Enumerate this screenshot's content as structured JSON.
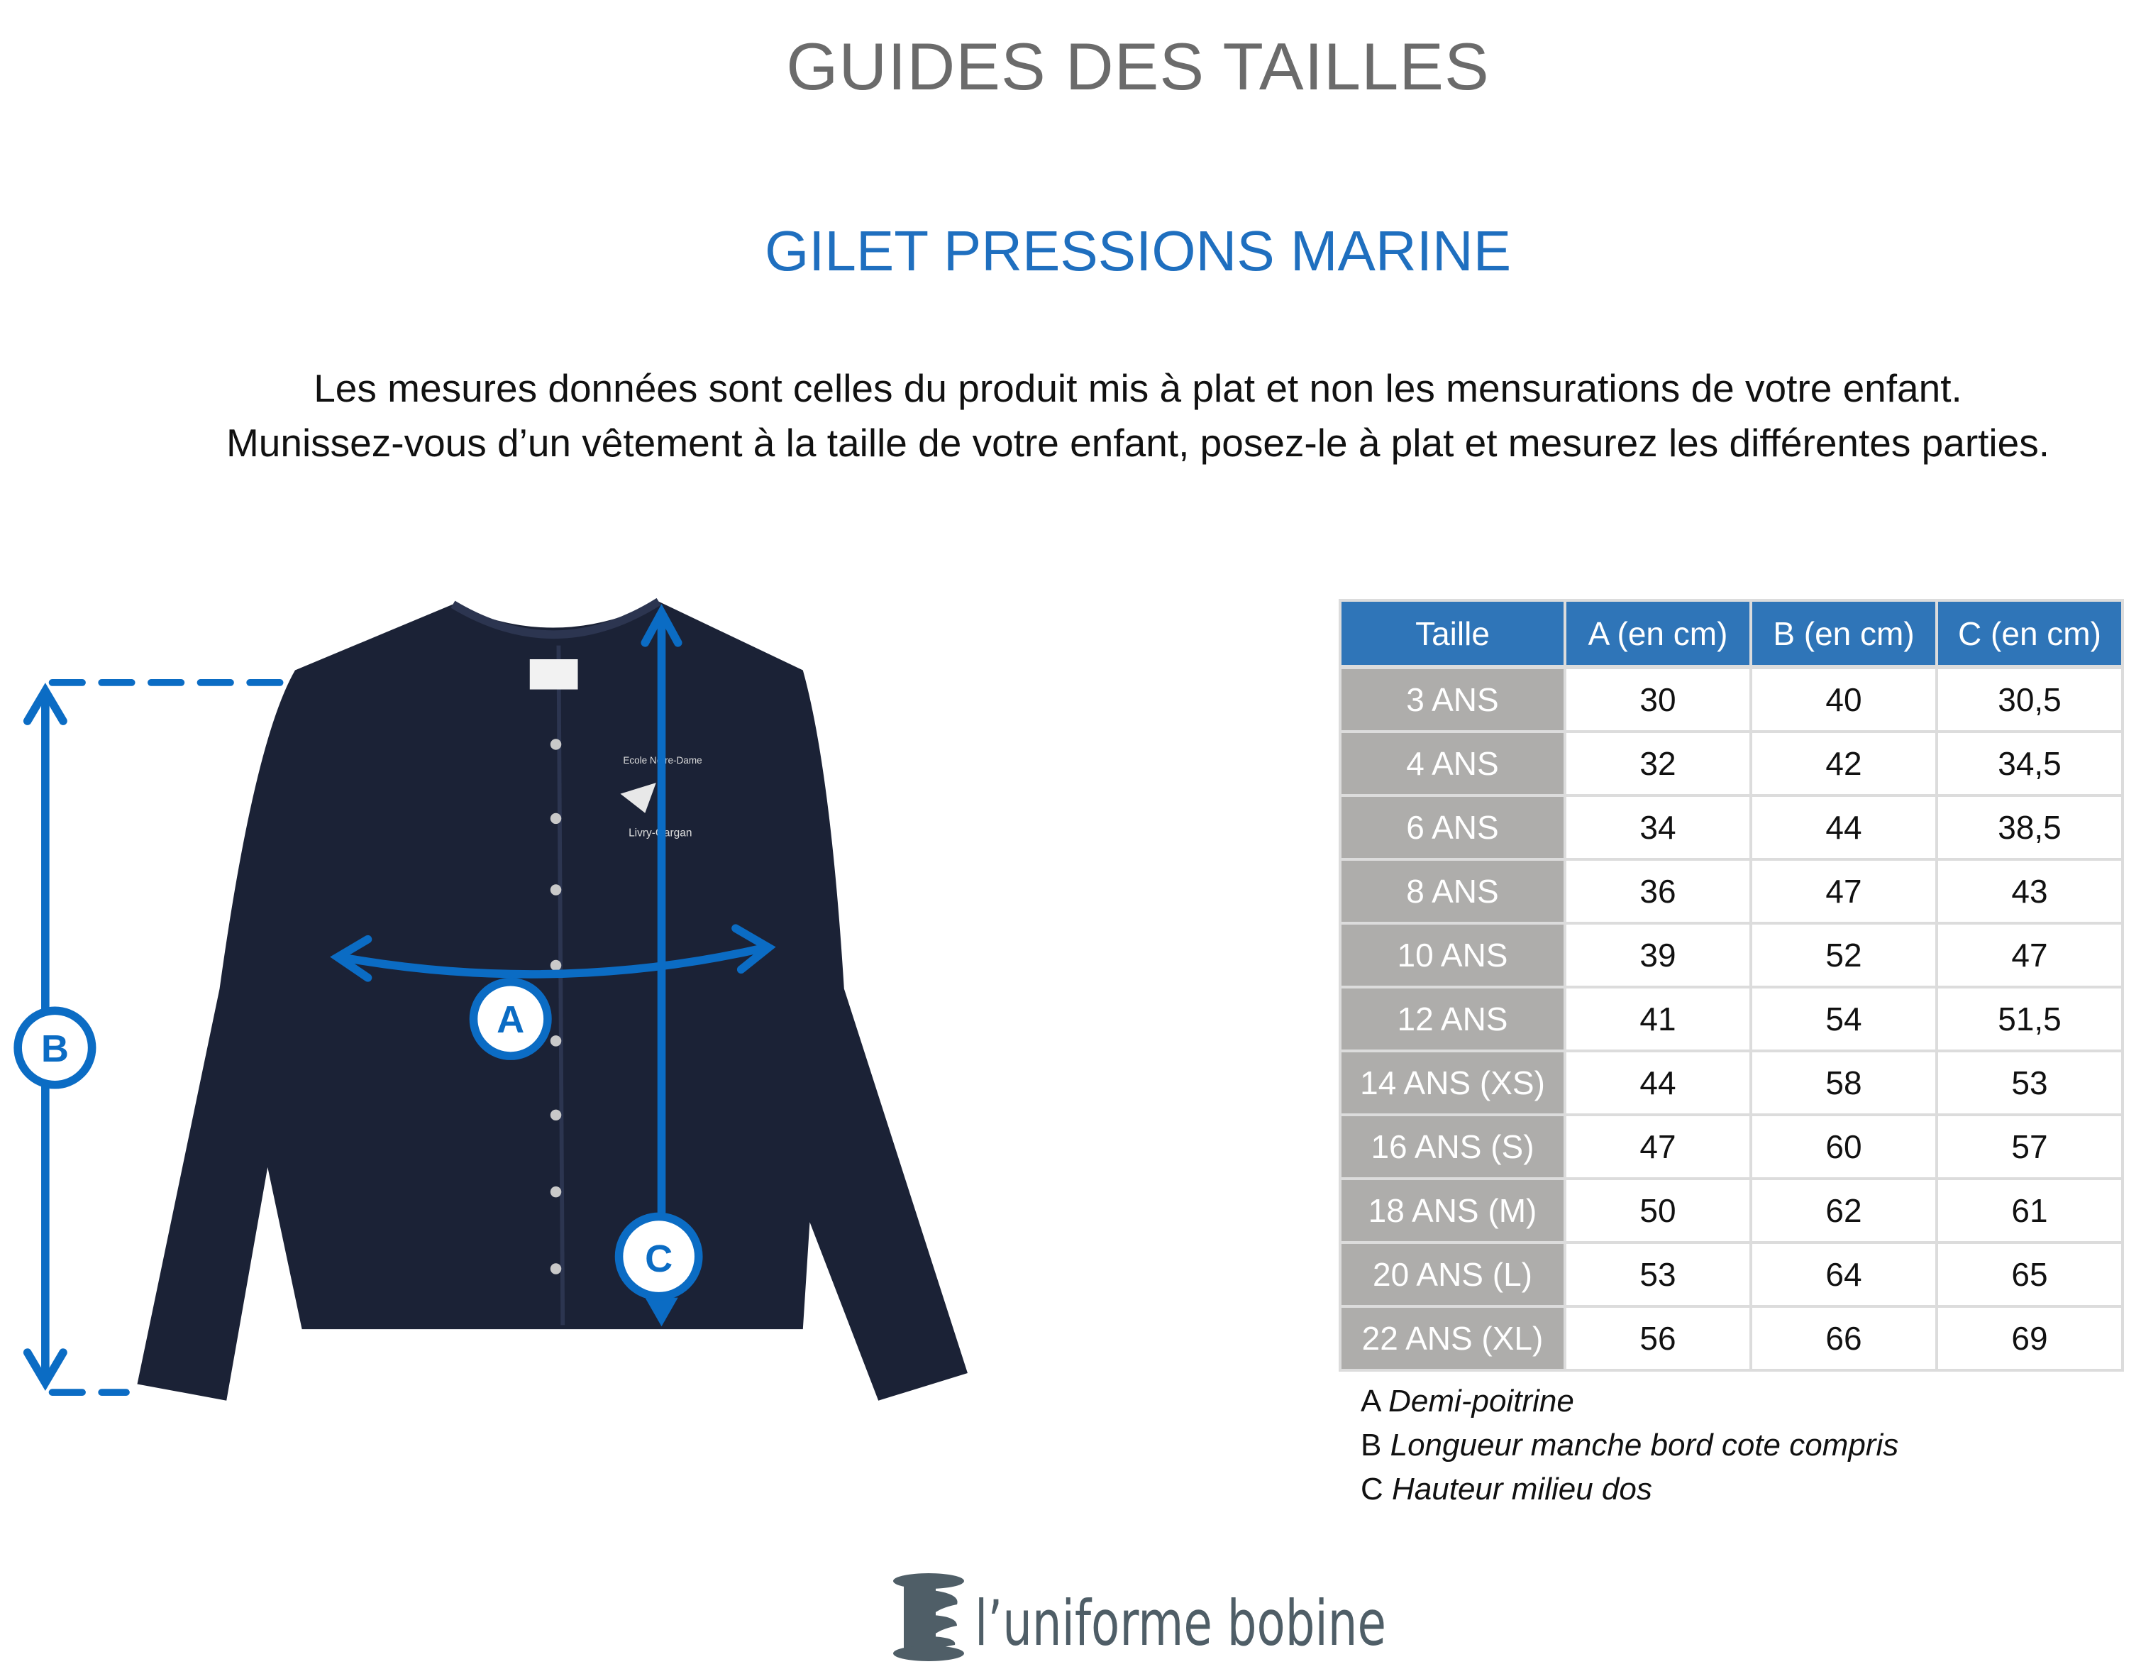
{
  "title": "GUIDES DES TAILLES",
  "subtitle": "GILET PRESSIONS MARINE",
  "intro": [
    "Les mesures données sont celles du produit mis à plat et non les mensurations de votre enfant.",
    "Munissez-vous d’un vêtement à la taille de votre enfant, posez-le à plat et mesurez les différentes parties."
  ],
  "figure": {
    "markers": [
      "A",
      "B",
      "C"
    ],
    "embroidery": [
      "Ecole Notre-Dame",
      "Livry-Gargan"
    ],
    "colors": {
      "arrow": "#0b6cc4",
      "garment": "#1b2236"
    }
  },
  "table": {
    "headers": [
      "Taille",
      "A (en cm)",
      "B (en cm)",
      "C (en cm)"
    ],
    "rows": [
      [
        "3 ANS",
        "30",
        "40",
        "30,5"
      ],
      [
        "4 ANS",
        "32",
        "42",
        "34,5"
      ],
      [
        "6 ANS",
        "34",
        "44",
        "38,5"
      ],
      [
        "8 ANS",
        "36",
        "47",
        "43"
      ],
      [
        "10 ANS",
        "39",
        "52",
        "47"
      ],
      [
        "12 ANS",
        "41",
        "54",
        "51,5"
      ],
      [
        "14 ANS (XS)",
        "44",
        "58",
        "53"
      ],
      [
        "16 ANS (S)",
        "47",
        "60",
        "57"
      ],
      [
        "18 ANS (M)",
        "50",
        "62",
        "61"
      ],
      [
        "20 ANS (L)",
        "53",
        "64",
        "65"
      ],
      [
        "22 ANS (XL)",
        "56",
        "66",
        "69"
      ]
    ],
    "colors": {
      "header": "#2f75b8",
      "size_column": "#aeadab"
    }
  },
  "legend": [
    {
      "key": "A",
      "label": "Demi-poitrine"
    },
    {
      "key": "B",
      "label": "Longueur manche bord cote compris"
    },
    {
      "key": "C",
      "label": "Hauteur milieu dos"
    }
  ],
  "logo": {
    "text": "l’uniforme bobine",
    "color": "#4f5e67"
  }
}
